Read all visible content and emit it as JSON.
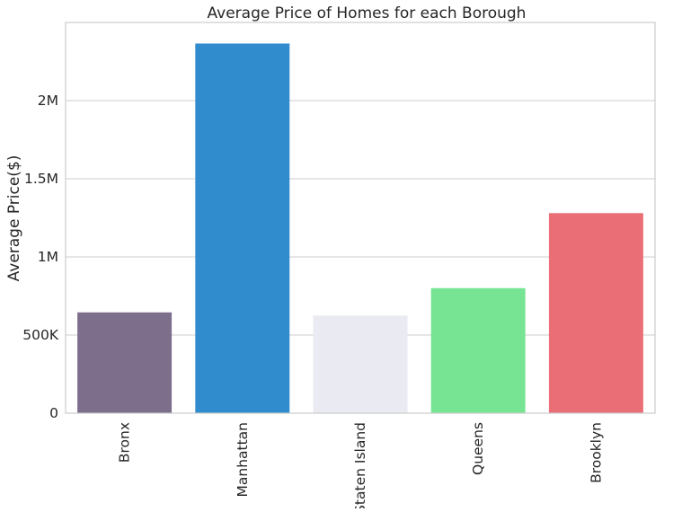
{
  "chart_data": {
    "type": "bar",
    "title": "Average Price of Homes for each Borough",
    "xlabel": "",
    "ylabel": "Average Price($)",
    "categories": [
      "Bronx",
      "Manhattan",
      "Staten Island",
      "Queens",
      "Brooklyn"
    ],
    "values": [
      645000,
      2365000,
      625000,
      800000,
      1280000
    ],
    "colors": [
      "#7d6e8c",
      "#318cce",
      "#eaeaf2",
      "#76e492",
      "#ea6e76"
    ],
    "ylim": [
      0,
      2500000
    ],
    "yticks": [
      0,
      500000,
      1000000,
      1500000,
      2000000
    ],
    "ytick_labels": [
      "0",
      "500K",
      "1M",
      "1.5M",
      "2M"
    ],
    "grid": "horizontal",
    "legend": "none",
    "style": {
      "grid_color": "#cccccc",
      "spine_color": "#cccccc",
      "text_color": "#262626",
      "background": "#ffffff"
    }
  }
}
